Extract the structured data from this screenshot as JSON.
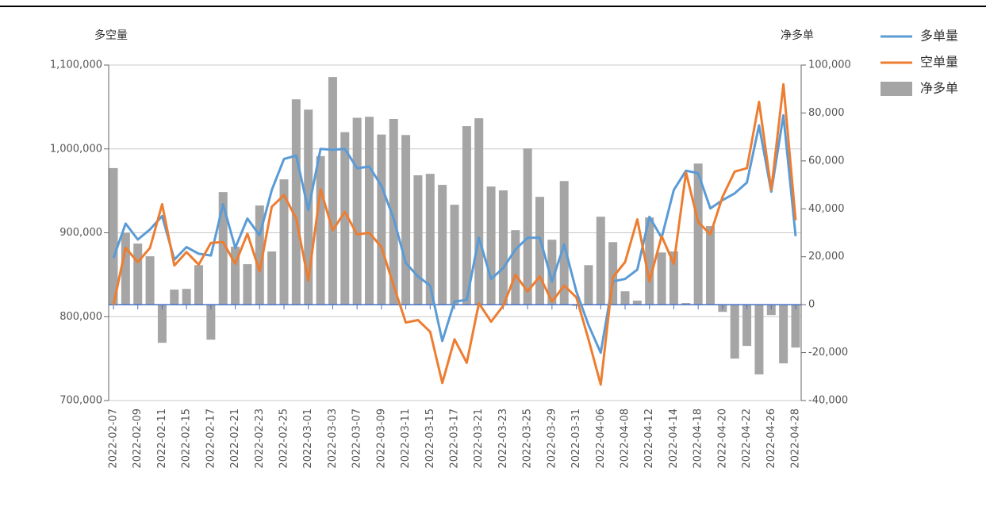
{
  "chart_data": {
    "type": "combo",
    "ylabel": "多空量",
    "y2label": "净多单",
    "categories": [
      "2022-02-07",
      "2022-02-08",
      "2022-02-09",
      "2022-02-10",
      "2022-02-11",
      "2022-02-14",
      "2022-02-15",
      "2022-02-16",
      "2022-02-17",
      "2022-02-18",
      "2022-02-21",
      "2022-02-22",
      "2022-02-23",
      "2022-02-24",
      "2022-02-25",
      "2022-02-28",
      "2022-03-01",
      "2022-03-02",
      "2022-03-03",
      "2022-03-04",
      "2022-03-07",
      "2022-03-08",
      "2022-03-09",
      "2022-03-10",
      "2022-03-11",
      "2022-03-14",
      "2022-03-15",
      "2022-03-16",
      "2022-03-17",
      "2022-03-18",
      "2022-03-21",
      "2022-03-22",
      "2022-03-23",
      "2022-03-24",
      "2022-03-25",
      "2022-03-28",
      "2022-03-29",
      "2022-03-30",
      "2022-03-31",
      "2022-04-01",
      "2022-04-06",
      "2022-04-07",
      "2022-04-08",
      "2022-04-11",
      "2022-04-12",
      "2022-04-13",
      "2022-04-14",
      "2022-04-15",
      "2022-04-18",
      "2022-04-19",
      "2022-04-20",
      "2022-04-21",
      "2022-04-22",
      "2022-04-25",
      "2022-04-26",
      "2022-04-27",
      "2022-04-28"
    ],
    "xtick_every": 2,
    "series": [
      {
        "name": "多单量",
        "type": "line",
        "axis": "y",
        "color": "#5b9bd5",
        "values": [
          870000,
          911000,
          892000,
          904000,
          920000,
          868000,
          883000,
          875000,
          873000,
          934000,
          882000,
          917000,
          897000,
          951000,
          988000,
          992000,
          927000,
          1000000,
          999000,
          1000000,
          977000,
          979000,
          956000,
          917000,
          864000,
          848000,
          837000,
          771000,
          818000,
          820000,
          894000,
          845000,
          858000,
          880000,
          894000,
          894000,
          842000,
          886000,
          830000,
          790000,
          757000,
          842000,
          845000,
          856000,
          919000,
          894000,
          951000,
          974000,
          971000,
          929000,
          939000,
          947000,
          960000,
          1028000,
          949000,
          1040000,
          896000
        ]
      },
      {
        "name": "空单量",
        "type": "line",
        "axis": "y",
        "color": "#ed7d31",
        "values": [
          814000,
          882000,
          865000,
          882000,
          934000,
          861000,
          877000,
          862000,
          888000,
          889000,
          863000,
          899000,
          854000,
          931000,
          945000,
          917000,
          843000,
          952000,
          903000,
          925000,
          898000,
          900000,
          883000,
          837000,
          793000,
          796000,
          782000,
          721000,
          773000,
          745000,
          816000,
          794000,
          813000,
          850000,
          830000,
          848000,
          818000,
          837000,
          823000,
          773000,
          719000,
          847000,
          865000,
          916000,
          842000,
          896000,
          863000,
          972000,
          913000,
          898000,
          943000,
          973000,
          977000,
          1056000,
          951000,
          1077000,
          915000
        ]
      },
      {
        "name": "净多单",
        "type": "bar",
        "axis": "y2",
        "color": "#a5a5a5",
        "values": [
          57000,
          30000,
          25500,
          20200,
          -15900,
          6300,
          6600,
          16500,
          -14600,
          47000,
          24200,
          16900,
          41400,
          22200,
          52300,
          85700,
          81400,
          62000,
          95000,
          72000,
          78000,
          78400,
          71000,
          77500,
          70800,
          54000,
          54600,
          50000,
          41700,
          74500,
          77800,
          49300,
          47700,
          31100,
          65200,
          45000,
          27100,
          51600,
          -500,
          16500,
          36700,
          26100,
          5600,
          1700,
          36400,
          21800,
          22200,
          700,
          58900,
          32800,
          -3000,
          -22500,
          -17200,
          -29100,
          -4300,
          -24500,
          -17900
        ]
      }
    ],
    "ylim": [
      700000,
      1100000
    ],
    "yticks": [
      {
        "value": 700000,
        "label": "700,000"
      },
      {
        "value": 800000,
        "label": "800,000"
      },
      {
        "value": 900000,
        "label": "900,000"
      },
      {
        "value": 1000000,
        "label": "1,000,000"
      },
      {
        "value": 1100000,
        "label": "1,100,000"
      }
    ],
    "y2lim": [
      -40000,
      100000
    ],
    "y2ticks": [
      {
        "value": -40000,
        "label": "-40,000"
      },
      {
        "value": -20000,
        "label": "-20,000"
      },
      0,
      {
        "value": 20000,
        "label": "20,000"
      },
      {
        "value": 40000,
        "label": "40,000"
      },
      {
        "value": 60000,
        "label": "60,000"
      },
      {
        "value": 80000,
        "label": "80,000"
      },
      {
        "value": 100000,
        "label": "100,000"
      }
    ],
    "grid": true,
    "legend": "top-right"
  }
}
